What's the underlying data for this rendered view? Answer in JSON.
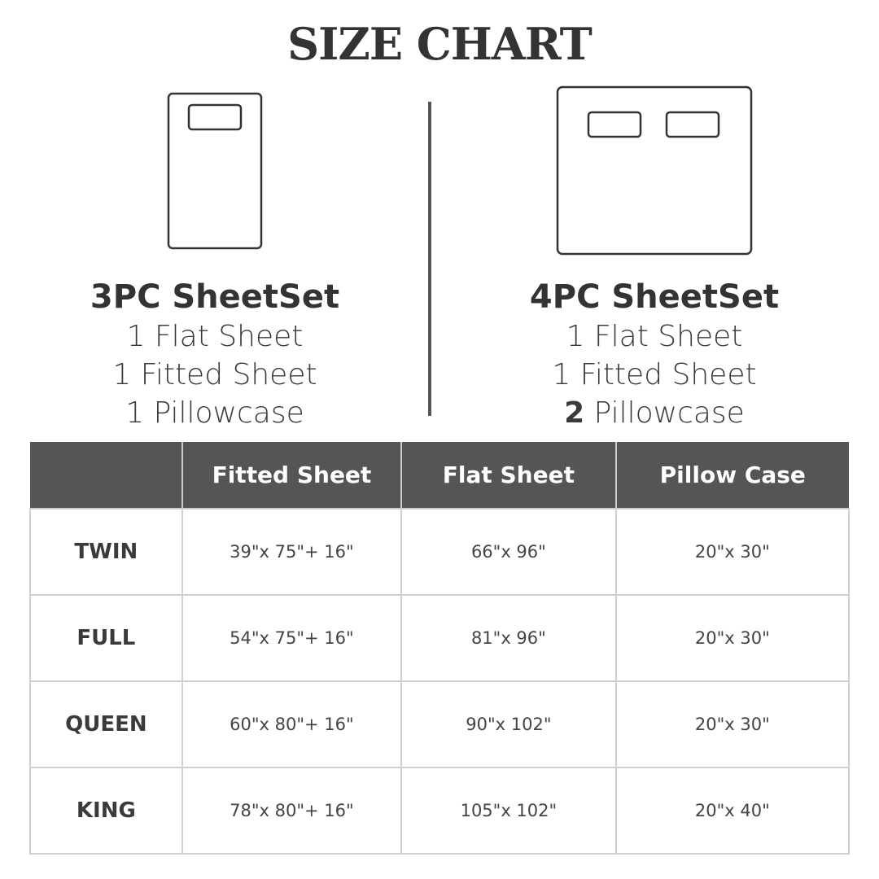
{
  "title": "SIZE CHART",
  "sets": [
    {
      "name": "3PC SheetSet",
      "lines": [
        "1 Flat Sheet",
        "1 Fitted Sheet"
      ],
      "pillow_count": "1",
      "pillow_label": "Pillowcase"
    },
    {
      "name": "4PC SheetSet",
      "lines": [
        "1 Flat Sheet",
        "1 Fitted Sheet"
      ],
      "pillow_count": "2",
      "pillow_label": "Pillowcase"
    }
  ],
  "table": {
    "headers": [
      "",
      "Fitted Sheet",
      "Flat Sheet",
      "Pillow Case"
    ],
    "rows": [
      [
        "TWIN",
        "39\"x 75\"+ 16\"",
        "66\"x 96\"",
        "20\"x 30\""
      ],
      [
        "FULL",
        "54\"x 75\"+ 16\"",
        "81\"x 96\"",
        "20\"x 30\""
      ],
      [
        "QUEEN",
        "60\"x 80\"+ 16\"",
        "90\"x 102\"",
        "20\"x 30\""
      ],
      [
        "KING",
        "78\"x 80\"+ 16\"",
        "105\"x 102\"",
        "20\"x 40\""
      ]
    ]
  },
  "colors": {
    "header_bg": "#555555",
    "text": "#3a3a3a",
    "grid": "#d0d0d0"
  }
}
